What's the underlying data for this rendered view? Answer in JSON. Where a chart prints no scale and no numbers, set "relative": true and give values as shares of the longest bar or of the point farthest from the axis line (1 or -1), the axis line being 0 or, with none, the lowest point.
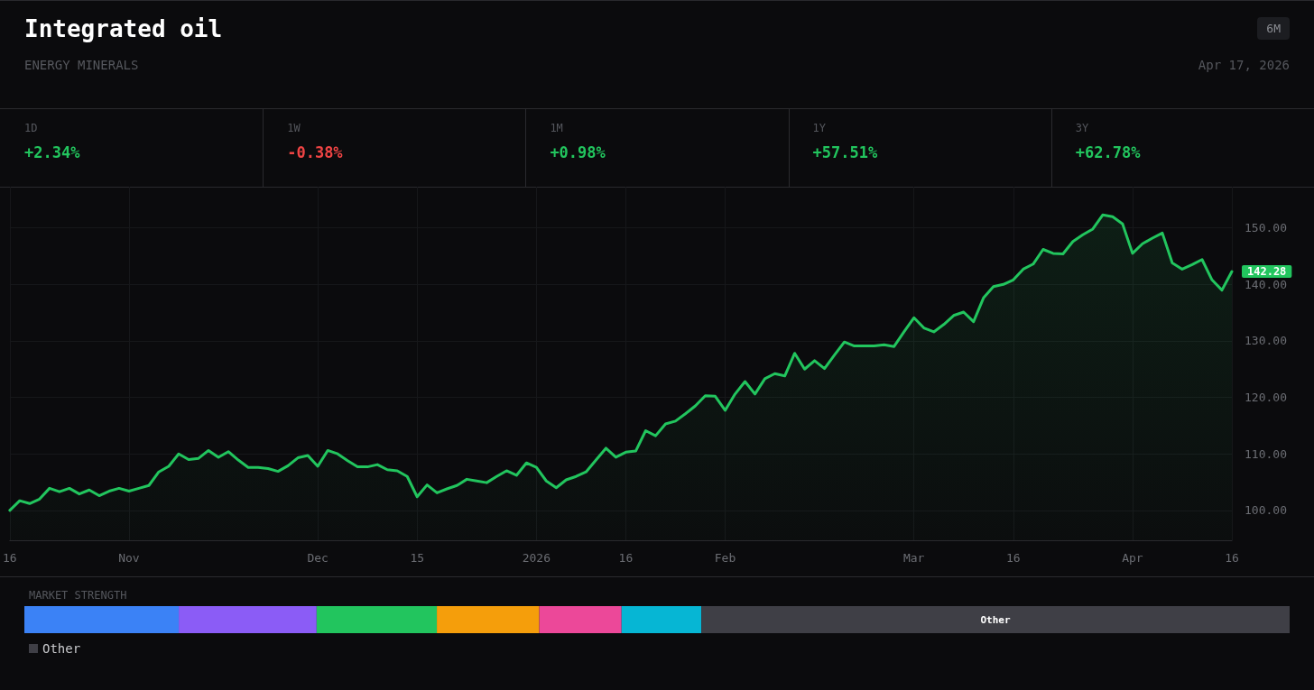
{
  "chart_data": [
    {
      "type": "other",
      "categories": [
        "1D",
        "1W",
        "1M",
        "1Y",
        "3Y"
      ],
      "value_labels": [
        "+2.34%",
        "-0.38%",
        "+0.98%",
        "+57.51%",
        "+62.78%"
      ],
      "colors": [
        "#22c55e",
        "#ef4444",
        "#22c55e",
        "#22c55e",
        "#22c55e"
      ]
    },
    {
      "type": "area",
      "title": "Integrated oil",
      "subtitle": "ENERGY MINERALS",
      "annotations": [
        "Apr 17, 2026",
        "6M"
      ],
      "categories": [
        "16",
        null,
        null,
        null,
        null,
        null,
        null,
        null,
        null,
        null,
        null,
        null,
        "Nov",
        null,
        null,
        null,
        null,
        null,
        null,
        null,
        null,
        null,
        null,
        null,
        null,
        null,
        null,
        null,
        null,
        null,
        null,
        "Dec",
        null,
        null,
        null,
        null,
        null,
        null,
        null,
        null,
        null,
        "15",
        null,
        null,
        null,
        null,
        null,
        null,
        null,
        null,
        null,
        null,
        null,
        "2026",
        null,
        null,
        null,
        null,
        null,
        null,
        null,
        null,
        "16",
        null,
        null,
        null,
        null,
        null,
        null,
        null,
        null,
        null,
        "Feb",
        null,
        null,
        null,
        null,
        null,
        null,
        null,
        null,
        null,
        null,
        null,
        null,
        null,
        null,
        null,
        null,
        null,
        null,
        "Mar",
        null,
        null,
        null,
        null,
        null,
        null,
        null,
        null,
        null,
        "16",
        null,
        null,
        null,
        null,
        null,
        null,
        null,
        null,
        null,
        null,
        null,
        "Apr",
        null,
        null,
        null,
        null,
        null,
        null,
        null,
        null,
        null,
        "16"
      ],
      "series": [
        {
          "color": "#22c55e",
          "values": [
            100.0,
            101.7,
            101.2,
            102.0,
            103.9,
            103.3,
            103.9,
            102.9,
            103.6,
            102.6,
            103.4,
            103.9,
            103.4,
            103.9,
            104.4,
            106.8,
            107.8,
            110.0,
            109.0,
            109.2,
            110.6,
            109.4,
            110.4,
            108.9,
            107.6,
            107.6,
            107.4,
            106.9,
            107.9,
            109.3,
            109.7,
            107.8,
            110.6,
            110.0,
            108.8,
            107.7,
            107.7,
            108.1,
            107.2,
            107.0,
            106.0,
            102.4,
            104.5,
            103.1,
            103.8,
            104.4,
            105.5,
            105.2,
            104.9,
            106.0,
            107.0,
            106.2,
            108.4,
            107.6,
            105.2,
            104.0,
            105.4,
            106.0,
            106.8,
            108.9,
            111.0,
            109.4,
            110.3,
            110.5,
            114.1,
            113.2,
            115.3,
            115.8,
            117.1,
            118.5,
            120.3,
            120.2,
            117.7,
            120.6,
            122.8,
            120.6,
            123.3,
            124.2,
            123.8,
            127.8,
            125.0,
            126.5,
            125.1,
            127.5,
            129.8,
            129.1,
            129.1,
            129.1,
            129.3,
            129.0,
            131.6,
            134.1,
            132.3,
            131.6,
            132.9,
            134.5,
            135.1,
            133.4,
            137.6,
            139.6,
            140.0,
            140.8,
            142.7,
            143.6,
            146.2,
            145.5,
            145.4,
            147.6,
            148.8,
            149.8,
            152.3,
            152.0,
            150.7,
            145.5,
            147.2,
            148.2,
            149.1,
            143.8,
            142.7,
            143.5,
            144.4,
            140.8,
            139.0,
            142.28
          ],
          "value_labels": [
            null,
            null,
            null,
            null,
            null,
            null,
            null,
            null,
            null,
            null,
            null,
            null,
            null,
            null,
            null,
            null,
            null,
            null,
            null,
            null,
            null,
            null,
            null,
            null,
            null,
            null,
            null,
            null,
            null,
            null,
            null,
            null,
            null,
            null,
            null,
            null,
            null,
            null,
            null,
            null,
            null,
            null,
            null,
            null,
            null,
            null,
            null,
            null,
            null,
            null,
            null,
            null,
            null,
            null,
            null,
            null,
            null,
            null,
            null,
            null,
            null,
            null,
            null,
            null,
            null,
            null,
            null,
            null,
            null,
            null,
            null,
            null,
            null,
            null,
            null,
            null,
            null,
            null,
            null,
            null,
            null,
            null,
            null,
            null,
            null,
            null,
            null,
            null,
            null,
            null,
            null,
            null,
            null,
            null,
            null,
            null,
            null,
            null,
            null,
            null,
            null,
            null,
            null,
            null,
            null,
            null,
            null,
            null,
            null,
            null,
            null,
            null,
            null,
            null,
            null,
            null,
            null,
            null,
            null,
            null,
            null,
            null,
            null,
            "142.28"
          ]
        }
      ],
      "ylim": [
        94.7,
        157.3
      ],
      "yticks": [
        {
          "value": 100,
          "label": "100.00"
        },
        {
          "value": 110,
          "label": "110.00"
        },
        {
          "value": 120,
          "label": "120.00"
        },
        {
          "value": 130,
          "label": "130.00"
        },
        {
          "value": 140,
          "label": "140.00"
        },
        {
          "value": 150,
          "label": "150.00"
        }
      ],
      "grid": true
    },
    {
      "type": "bar",
      "title": "MARKET STRENGTH",
      "orientation": "horizontal",
      "stacked": true,
      "relative": true,
      "categories": [
        null
      ],
      "legend": "bottom",
      "series": [
        {
          "color": "#3b82f6",
          "values": [
            0.122
          ]
        },
        {
          "color": "#8b5cf6",
          "values": [
            0.109
          ]
        },
        {
          "color": "#22c55e",
          "values": [
            0.095
          ]
        },
        {
          "color": "#f59e0b",
          "values": [
            0.081
          ]
        },
        {
          "color": "#ec4899",
          "values": [
            0.065
          ]
        },
        {
          "color": "#06b6d4",
          "values": [
            0.063
          ]
        },
        {
          "name": "Other",
          "color": "#3f3f46",
          "values": [
            0.465
          ]
        }
      ]
    }
  ]
}
